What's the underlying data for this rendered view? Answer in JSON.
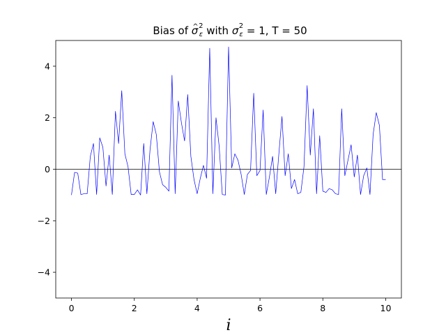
{
  "chart_data": {
    "type": "line",
    "title_parts": {
      "prefix": "Bias of ",
      "sym1": "σ",
      "hat": "^",
      "sub1": "ε",
      "sup1": "2",
      "middle": " with ",
      "sym2": "σ",
      "sub2": "ε",
      "sup2": "2",
      "suffix": " = 1, T = 50"
    },
    "xlabel": "i",
    "ylabel": "",
    "xlim": [
      -0.5,
      10.5
    ],
    "ylim": [
      -5,
      5
    ],
    "x_ticks": [
      0,
      2,
      4,
      6,
      8,
      10
    ],
    "y_ticks": [
      -4,
      -2,
      0,
      2,
      4
    ],
    "x_tick_labels": [
      "0",
      "2",
      "4",
      "6",
      "8",
      "10"
    ],
    "y_tick_labels": [
      "−4",
      "−2",
      "0",
      "2",
      "4"
    ],
    "reference_line_y": 0,
    "grid": false,
    "legend": "none",
    "series": [
      {
        "color": "#0000ff",
        "x": [
          0.0,
          0.1,
          0.2,
          0.3,
          0.4,
          0.5,
          0.6,
          0.7,
          0.8,
          0.9,
          1.0,
          1.1,
          1.2,
          1.3,
          1.4,
          1.5,
          1.6,
          1.7,
          1.8,
          1.9,
          2.0,
          2.1,
          2.2,
          2.3,
          2.4,
          2.5,
          2.6,
          2.7,
          2.8,
          2.9,
          3.0,
          3.1,
          3.2,
          3.3,
          3.4,
          3.5,
          3.6,
          3.7,
          3.8,
          3.9,
          4.0,
          4.1,
          4.2,
          4.3,
          4.4,
          4.5,
          4.6,
          4.7,
          4.8,
          4.9,
          5.0,
          5.1,
          5.2,
          5.3,
          5.4,
          5.5,
          5.6,
          5.7,
          5.8,
          5.9,
          6.0,
          6.1,
          6.2,
          6.3,
          6.4,
          6.5,
          6.6,
          6.7,
          6.8,
          6.9,
          7.0,
          7.1,
          7.2,
          7.3,
          7.4,
          7.5,
          7.6,
          7.7,
          7.8,
          7.9,
          8.0,
          8.1,
          8.2,
          8.3,
          8.4,
          8.5,
          8.6,
          8.7,
          8.8,
          8.9,
          9.0,
          9.1,
          9.2,
          9.3,
          9.4,
          9.5,
          9.6,
          9.7,
          9.8,
          9.9,
          10.0
        ],
        "y": [
          -1.0,
          -0.12,
          -0.15,
          -0.98,
          -0.95,
          -0.95,
          0.5,
          1.0,
          -0.98,
          1.22,
          0.85,
          -0.65,
          0.55,
          -0.98,
          2.25,
          1.0,
          3.05,
          0.6,
          0.1,
          -0.98,
          -0.98,
          -0.8,
          -1.0,
          1.0,
          -0.95,
          0.75,
          1.85,
          1.35,
          -0.1,
          -0.6,
          -0.7,
          -0.85,
          3.65,
          -0.95,
          2.65,
          1.8,
          1.1,
          2.9,
          0.5,
          -0.4,
          -0.95,
          -0.35,
          0.15,
          -0.35,
          4.7,
          -0.95,
          2.0,
          0.9,
          -0.98,
          -1.0,
          4.75,
          0.05,
          0.6,
          0.35,
          -0.2,
          -0.98,
          -0.2,
          -0.05,
          2.95,
          -0.25,
          -0.05,
          2.3,
          -0.98,
          -0.3,
          0.5,
          -0.95,
          0.6,
          2.05,
          -0.25,
          0.6,
          -0.75,
          -0.4,
          -0.95,
          -0.9,
          0.1,
          3.25,
          0.55,
          2.35,
          -0.95,
          1.3,
          -0.85,
          -0.9,
          -0.75,
          -0.8,
          -0.95,
          -0.98,
          2.35,
          -0.25,
          0.35,
          0.95,
          -0.3,
          0.55,
          -0.98,
          -0.25,
          0.05,
          -0.98,
          1.35,
          2.2,
          1.7,
          -0.4,
          -0.4
        ]
      }
    ]
  }
}
